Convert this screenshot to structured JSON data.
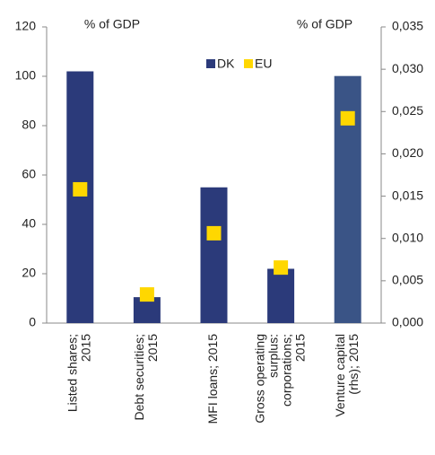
{
  "chart_data": {
    "type": "bar",
    "y_label": "% of GDP",
    "y2_label": "% of GDP",
    "categories": [
      [
        "Listed shares;",
        "2015"
      ],
      [
        "Debt securities;",
        "2015"
      ],
      [
        "MFI loans; 2015"
      ],
      [
        "Gross operating",
        "surplus:",
        "corporations;",
        "2015"
      ],
      [
        "Venture capital",
        "(rhs); 2015"
      ]
    ],
    "series": [
      {
        "name": "DK",
        "color": "#2b3a7a",
        "mark": "bar",
        "axes": [
          "y",
          "y",
          "y",
          "y",
          "y2"
        ],
        "colors": [
          "#2b3a7a",
          "#2b3a7a",
          "#2b3a7a",
          "#2b3a7a",
          "#3a5486"
        ],
        "values": [
          102,
          10.5,
          55,
          22,
          0.0292
        ]
      },
      {
        "name": "EU",
        "color": "#ffd700",
        "mark": "square",
        "axes": [
          "y",
          "y",
          "y",
          "y",
          "y2"
        ],
        "values": [
          54.2,
          11.6,
          36.4,
          22.5,
          0.0242
        ]
      }
    ],
    "ylim": [
      0,
      120
    ],
    "yticks": [
      0,
      20,
      40,
      60,
      80,
      100,
      120
    ],
    "y2lim": [
      0,
      0.035
    ],
    "y2ticks": [
      {
        "value": 0,
        "label": "0,000"
      },
      {
        "value": 0.005,
        "label": "0,005"
      },
      {
        "value": 0.01,
        "label": "0,010"
      },
      {
        "value": 0.015,
        "label": "0,015"
      },
      {
        "value": 0.02,
        "label": "0,020"
      },
      {
        "value": 0.025,
        "label": "0,025"
      },
      {
        "value": 0.03,
        "label": "0,030"
      },
      {
        "value": 0.035,
        "label": "0,035"
      }
    ],
    "legend": "top-center",
    "grid": false
  }
}
